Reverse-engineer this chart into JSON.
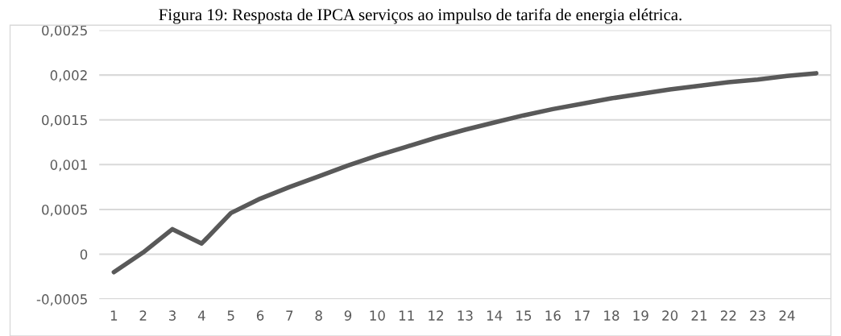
{
  "chart_data": {
    "type": "line",
    "title": "Figura 19: Resposta de IPCA serviços ao impulso de tarifa de energia elétrica.",
    "categories": [
      "1",
      "2",
      "3",
      "4",
      "5",
      "6",
      "7",
      "8",
      "9",
      "10",
      "11",
      "12",
      "13",
      "14",
      "15",
      "16",
      "17",
      "18",
      "19",
      "20",
      "21",
      "22",
      "23",
      "24",
      null
    ],
    "series": [
      {
        "color": "#595959",
        "values": [
          -0.0002,
          2e-05,
          0.00028,
          0.00012,
          0.00046,
          0.00062,
          0.00075,
          0.00087,
          0.00099,
          0.0011,
          0.0012,
          0.0013,
          0.00139,
          0.00147,
          0.00155,
          0.00162,
          0.00168,
          0.00174,
          0.00179,
          0.00184,
          0.00188,
          0.00192,
          0.00195,
          0.00199,
          0.00202
        ]
      }
    ],
    "ylim": [
      -0.0005,
      0.0025
    ],
    "yticks": [
      {
        "value": -0.0005,
        "label": "-0,0005"
      },
      {
        "value": 0,
        "label": "0"
      },
      {
        "value": 0.0005,
        "label": "0,0005"
      },
      {
        "value": 0.001,
        "label": "0,001"
      },
      {
        "value": 0.0015,
        "label": "0,0015"
      },
      {
        "value": 0.002,
        "label": "0,002"
      },
      {
        "value": 0.0025,
        "label": "0,0025"
      }
    ],
    "grid": "y",
    "marker": "none",
    "line_style": "solid"
  }
}
